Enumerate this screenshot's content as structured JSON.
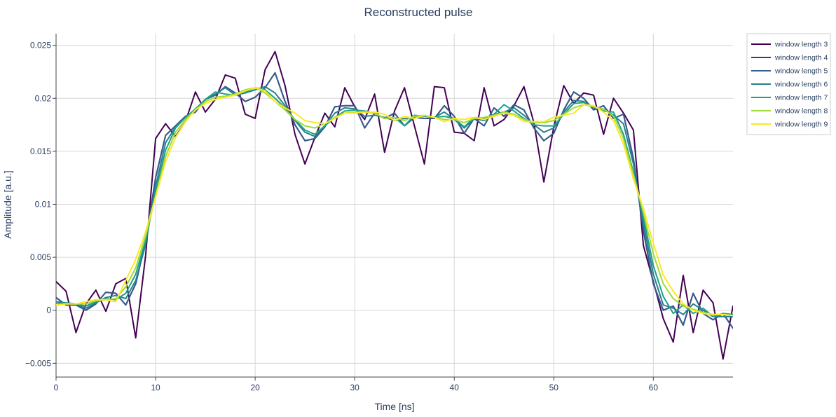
{
  "chart_data": {
    "type": "line",
    "title": "Reconstructed pulse",
    "xlabel": "Time [ns]",
    "ylabel": "Amplitude [a.u.]",
    "xlim": [
      0,
      68
    ],
    "ylim": [
      -0.0063,
      0.0261
    ],
    "x_ticks": [
      0,
      10,
      20,
      30,
      40,
      50,
      60
    ],
    "x_tick_labels": [
      "0",
      "10",
      "20",
      "30",
      "40",
      "50",
      "60"
    ],
    "y_ticks": [
      -0.005,
      0,
      0.005,
      0.01,
      0.015,
      0.02,
      0.025
    ],
    "y_tick_labels": [
      "−0.005",
      "0",
      "0.005",
      "0.01",
      "0.015",
      "0.02",
      "0.025"
    ],
    "grid": true,
    "legend_position": "right",
    "x": [
      0,
      1,
      2,
      3,
      4,
      5,
      6,
      7,
      8,
      9,
      10,
      11,
      12,
      13,
      14,
      15,
      16,
      17,
      18,
      19,
      20,
      21,
      22,
      23,
      24,
      25,
      26,
      27,
      28,
      29,
      30,
      31,
      32,
      33,
      34,
      35,
      36,
      37,
      38,
      39,
      40,
      41,
      42,
      43,
      44,
      45,
      46,
      47,
      48,
      49,
      50,
      51,
      52,
      53,
      54,
      55,
      56,
      57,
      58,
      59,
      60,
      61,
      62,
      63,
      64,
      65,
      66,
      67,
      68
    ],
    "series": [
      {
        "name": "window length 3",
        "color": "#440154",
        "values": [
          0.0027,
          0.0018,
          -0.0021,
          0.0006,
          0.0019,
          -0.0001,
          0.0025,
          0.003,
          -0.0026,
          0.0052,
          0.0162,
          0.0176,
          0.0164,
          0.0178,
          0.0206,
          0.0187,
          0.0199,
          0.0222,
          0.0219,
          0.0185,
          0.0181,
          0.0227,
          0.0244,
          0.0212,
          0.0166,
          0.0138,
          0.0163,
          0.0186,
          0.0173,
          0.021,
          0.0192,
          0.018,
          0.0204,
          0.0149,
          0.0188,
          0.021,
          0.0174,
          0.0138,
          0.0211,
          0.021,
          0.0168,
          0.0167,
          0.016,
          0.021,
          0.0174,
          0.018,
          0.0193,
          0.0211,
          0.0177,
          0.0121,
          0.0173,
          0.0212,
          0.0195,
          0.0205,
          0.0203,
          0.0166,
          0.02,
          0.0186,
          0.017,
          0.0061,
          0.0027,
          -0.0008,
          -0.003,
          0.0033,
          -0.0021,
          0.0019,
          0.0007,
          -0.0046,
          0.0004
        ]
      },
      {
        "name": "window length 4",
        "color": "#46327e",
        "values": [
          0.0012,
          0.0005,
          0.0005,
          0.0,
          0.0006,
          0.0017,
          0.0016,
          0.0005,
          0.0025,
          0.0065,
          0.0125,
          0.0165,
          0.0174,
          0.0183,
          0.0187,
          0.0199,
          0.0203,
          0.0211,
          0.0205,
          0.0197,
          0.0201,
          0.021,
          0.0224,
          0.0197,
          0.0175,
          0.016,
          0.0162,
          0.0173,
          0.0192,
          0.0193,
          0.0193,
          0.0172,
          0.0186,
          0.0181,
          0.0186,
          0.0174,
          0.0182,
          0.0181,
          0.0181,
          0.0193,
          0.0183,
          0.0167,
          0.0181,
          0.0174,
          0.0191,
          0.0183,
          0.0194,
          0.0189,
          0.0172,
          0.016,
          0.0167,
          0.0189,
          0.0206,
          0.02,
          0.0189,
          0.0193,
          0.0181,
          0.0185,
          0.0143,
          0.0075,
          0.0025,
          0.0,
          0.0004,
          -0.0014,
          0.0016,
          -0.0003,
          -0.0009,
          -0.0003,
          -0.0017
        ]
      },
      {
        "name": "window length 5",
        "color": "#365c8d",
        "values": [
          0.0012,
          0.0005,
          0.0005,
          0.0,
          0.0006,
          0.0017,
          0.0016,
          0.0005,
          0.0025,
          0.0065,
          0.0125,
          0.0165,
          0.0174,
          0.0183,
          0.0187,
          0.0199,
          0.0203,
          0.0211,
          0.0205,
          0.0197,
          0.0201,
          0.021,
          0.0224,
          0.0197,
          0.0175,
          0.016,
          0.0162,
          0.0173,
          0.0192,
          0.0193,
          0.0193,
          0.0172,
          0.0186,
          0.0181,
          0.0186,
          0.0174,
          0.0182,
          0.0181,
          0.0181,
          0.0193,
          0.0183,
          0.0167,
          0.0181,
          0.0174,
          0.0191,
          0.0183,
          0.0194,
          0.0189,
          0.0172,
          0.016,
          0.0167,
          0.0189,
          0.0206,
          0.02,
          0.0189,
          0.0193,
          0.0181,
          0.0185,
          0.0143,
          0.0075,
          0.0025,
          0.0,
          0.0004,
          -0.0014,
          0.0016,
          -0.0003,
          -0.0009,
          -0.0003,
          -0.0017
        ]
      },
      {
        "name": "window length 6",
        "color": "#277f8e",
        "values": [
          0.0008,
          0.0007,
          0.0006,
          0.0002,
          0.0007,
          0.0012,
          0.0014,
          0.0011,
          0.0028,
          0.0062,
          0.0117,
          0.0158,
          0.0173,
          0.0182,
          0.0188,
          0.0199,
          0.0204,
          0.021,
          0.0203,
          0.0205,
          0.0208,
          0.0211,
          0.0205,
          0.0193,
          0.0179,
          0.0168,
          0.0164,
          0.0174,
          0.0186,
          0.0191,
          0.019,
          0.0183,
          0.0184,
          0.0182,
          0.0179,
          0.0181,
          0.0181,
          0.0184,
          0.0182,
          0.0187,
          0.018,
          0.0172,
          0.0181,
          0.0179,
          0.0185,
          0.0187,
          0.0191,
          0.0184,
          0.0175,
          0.0168,
          0.0172,
          0.0187,
          0.0198,
          0.0197,
          0.0191,
          0.019,
          0.0184,
          0.0176,
          0.0138,
          0.0082,
          0.0034,
          0.0005,
          0.0002,
          -0.0004,
          0.0006,
          0.0,
          -0.0006,
          -0.0006,
          -0.0006
        ]
      },
      {
        "name": "window length 7",
        "color": "#1fa187",
        "values": [
          0.0006,
          0.0007,
          0.0006,
          0.0004,
          0.0008,
          0.0011,
          0.001,
          0.0016,
          0.0034,
          0.0066,
          0.0112,
          0.0151,
          0.0172,
          0.0182,
          0.019,
          0.0199,
          0.0206,
          0.0204,
          0.0203,
          0.0206,
          0.021,
          0.0208,
          0.02,
          0.0191,
          0.018,
          0.017,
          0.0166,
          0.0174,
          0.0182,
          0.0188,
          0.0189,
          0.0188,
          0.0186,
          0.0181,
          0.0182,
          0.0174,
          0.0184,
          0.0183,
          0.0182,
          0.0183,
          0.0181,
          0.0173,
          0.0182,
          0.0181,
          0.0185,
          0.0194,
          0.0188,
          0.0181,
          0.0175,
          0.0174,
          0.0174,
          0.0185,
          0.0195,
          0.0196,
          0.0192,
          0.0188,
          0.0187,
          0.0166,
          0.013,
          0.0088,
          0.0042,
          0.0013,
          -0.0003,
          0.0005,
          -0.0003,
          0.0002,
          -0.0006,
          -0.0003,
          -0.0004
        ]
      },
      {
        "name": "window length 8",
        "color": "#9fda3a",
        "values": [
          0.0005,
          0.0006,
          0.0006,
          0.0006,
          0.0009,
          0.001,
          0.0011,
          0.0022,
          0.004,
          0.007,
          0.0108,
          0.0145,
          0.0168,
          0.018,
          0.0189,
          0.0197,
          0.0201,
          0.0202,
          0.0204,
          0.0208,
          0.021,
          0.0205,
          0.0197,
          0.0189,
          0.018,
          0.0174,
          0.0172,
          0.0176,
          0.0182,
          0.0186,
          0.0187,
          0.0187,
          0.0186,
          0.0181,
          0.0182,
          0.0179,
          0.0183,
          0.0184,
          0.0182,
          0.018,
          0.018,
          0.0177,
          0.0181,
          0.0182,
          0.0184,
          0.0187,
          0.0185,
          0.018,
          0.0177,
          0.0177,
          0.0179,
          0.0185,
          0.0191,
          0.0194,
          0.0192,
          0.019,
          0.0183,
          0.0162,
          0.0128,
          0.0092,
          0.0053,
          0.0025,
          0.0011,
          0.0004,
          0.0001,
          -0.0002,
          -0.0004,
          -0.0004,
          -0.0005
        ]
      },
      {
        "name": "window length 9",
        "color": "#fde725",
        "values": [
          0.0005,
          0.0006,
          0.0006,
          0.0008,
          0.001,
          0.001,
          0.0008,
          0.0028,
          0.0048,
          0.0074,
          0.0107,
          0.014,
          0.0163,
          0.0178,
          0.0189,
          0.0195,
          0.0199,
          0.0201,
          0.0203,
          0.0207,
          0.021,
          0.0207,
          0.0197,
          0.0191,
          0.0186,
          0.0179,
          0.0177,
          0.0176,
          0.0181,
          0.0186,
          0.0186,
          0.0187,
          0.0187,
          0.0185,
          0.0179,
          0.0183,
          0.0181,
          0.0184,
          0.0182,
          0.0178,
          0.0181,
          0.018,
          0.0182,
          0.018,
          0.0183,
          0.0186,
          0.0184,
          0.0178,
          0.0178,
          0.0178,
          0.0182,
          0.0184,
          0.0186,
          0.0194,
          0.0193,
          0.0187,
          0.0179,
          0.0157,
          0.0124,
          0.0096,
          0.0063,
          0.0033,
          0.0018,
          0.0006,
          0.0,
          -0.0003,
          -0.0004,
          -0.0004,
          -0.0005
        ]
      }
    ]
  }
}
